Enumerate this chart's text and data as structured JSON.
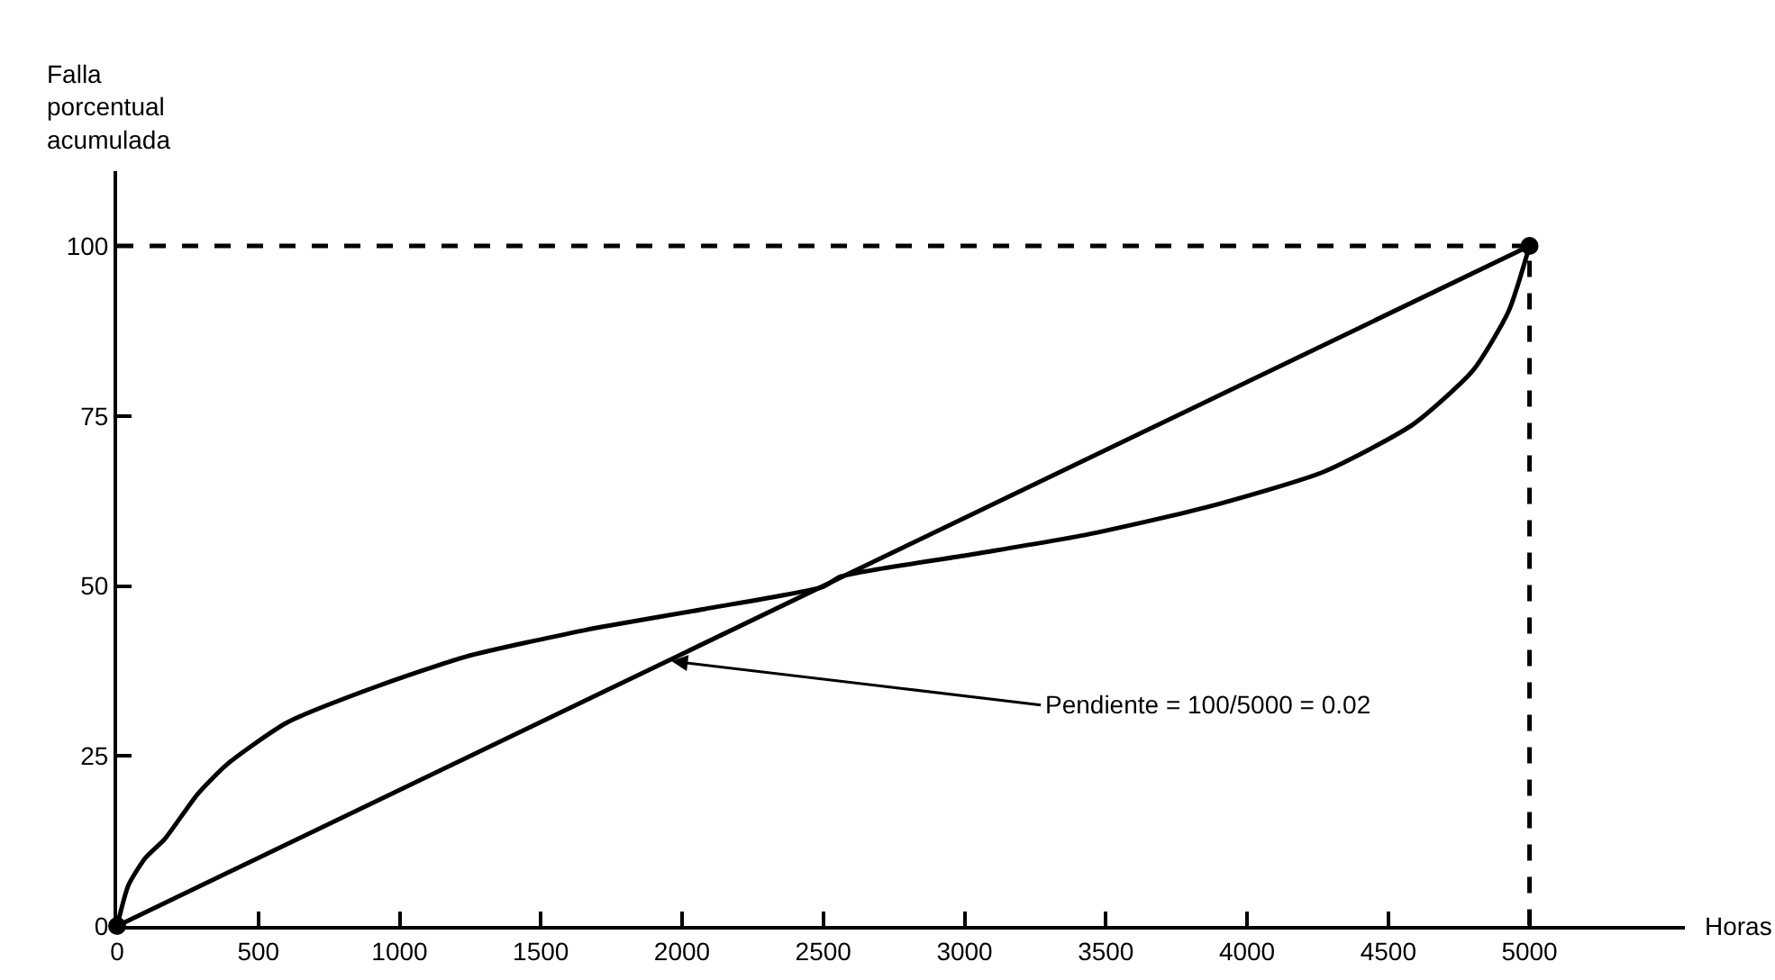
{
  "chart_data": {
    "type": "line",
    "xlabel": "Horas",
    "ylabel": "Falla porcentual acumulada",
    "xlim": [
      0,
      5550
    ],
    "ylim": [
      0,
      111
    ],
    "xticks": [
      0,
      500,
      1000,
      1500,
      2000,
      2500,
      3000,
      3500,
      4000,
      4500,
      5000
    ],
    "yticks": [
      0,
      25,
      50,
      75,
      100
    ],
    "grid": false,
    "series": [
      {
        "color": "#000000",
        "line_style": "dashed",
        "x": [
          0,
          5000,
          5000
        ],
        "values": [
          100,
          100,
          0
        ]
      },
      {
        "color": "#000000",
        "line_style": "solid",
        "x": [
          0,
          5000
        ],
        "values": [
          0,
          100
        ]
      },
      {
        "color": "#000000",
        "line_style": "solid",
        "x": [
          0,
          40,
          100,
          169,
          285,
          390,
          601,
          918,
          1234,
          1656,
          2078,
          2500,
          2563,
          3006,
          3428,
          3850,
          4272,
          4589,
          4800,
          4926,
          5000
        ],
        "values": [
          0,
          6,
          10,
          12.8,
          19.4,
          23.8,
          29.9,
          35.2,
          39.6,
          43.5,
          46.6,
          49.9,
          51.4,
          54.5,
          57.5,
          61.5,
          66.8,
          73.8,
          81.7,
          90.4,
          100
        ]
      },
      {
        "type": "scatter",
        "color": "#000000",
        "marker": "circle",
        "x": [
          0,
          5000
        ],
        "values": [
          0,
          100
        ]
      }
    ],
    "annotations": [
      {
        "text": "Pendiente = 100/5000 = 0.02",
        "x": 1950,
        "y": 39
      }
    ]
  }
}
